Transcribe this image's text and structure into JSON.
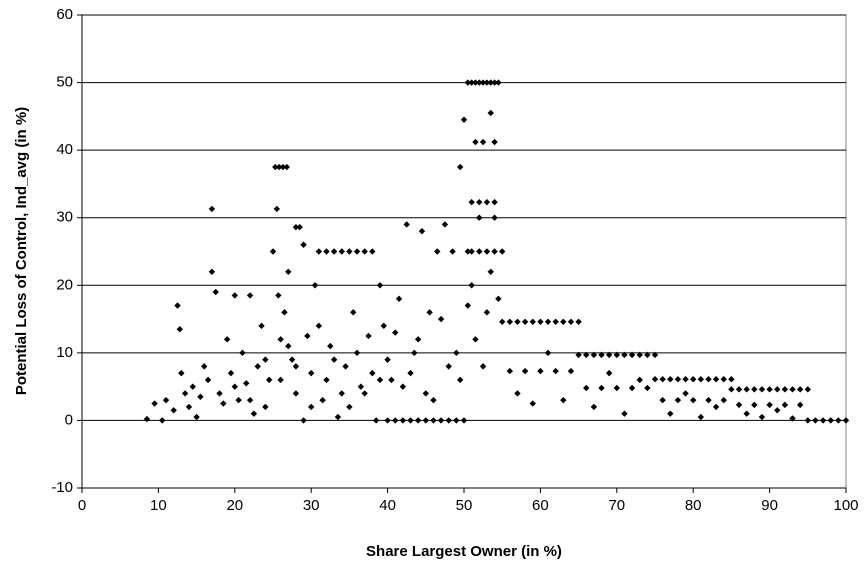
{
  "chart_data": {
    "type": "scatter",
    "x_label": "Share Largest Owner (in %)",
    "y_label": "Potential Loss of Control, Ind_avg (in %)",
    "color": "#000000",
    "grid": true,
    "xlim": [
      0,
      100
    ],
    "ylim": [
      -10,
      60
    ],
    "xticks": [
      0,
      10,
      20,
      30,
      40,
      50,
      60,
      70,
      80,
      90,
      100
    ],
    "yticks": [
      -10,
      0,
      10,
      20,
      30,
      40,
      50,
      60
    ],
    "x": [
      8.5,
      9.5,
      10.5,
      11,
      12,
      12.5,
      12.8,
      13,
      13.5,
      14,
      14.5,
      15,
      15.5,
      16,
      16.5,
      17,
      17,
      17.5,
      18,
      18.5,
      19,
      19.5,
      20,
      20.5,
      21,
      21.5,
      22,
      22.5,
      23,
      23.5,
      24,
      24.5,
      25,
      25.3,
      25.8,
      26.3,
      26.8,
      25.5,
      25.7,
      26,
      26.5,
      27,
      27.5,
      28,
      28.5,
      29,
      28,
      29,
      29.5,
      30,
      30.5,
      31,
      31.5,
      32,
      32.5,
      33,
      33.5,
      34,
      34.5,
      35,
      35.5,
      36,
      36.5,
      37,
      37.5,
      38,
      38.5,
      39,
      39.5,
      40,
      40.5,
      41,
      41.5,
      42,
      42.5,
      43,
      43.5,
      44,
      44.5,
      45,
      45.5,
      46,
      46.5,
      47,
      47.5,
      48,
      48.5,
      49,
      49.5,
      50,
      50,
      50.5,
      51,
      51.5,
      52,
      52.5,
      53,
      53.5,
      54,
      54.5,
      50.5,
      51,
      52,
      53,
      54,
      55,
      51,
      52,
      53,
      54,
      51.5,
      52.5,
      53.5,
      54,
      52,
      54,
      51,
      53,
      55,
      56,
      57,
      58,
      59,
      60,
      61,
      62,
      63,
      64,
      65,
      56,
      58,
      60,
      62,
      64,
      57,
      59,
      61,
      63,
      65,
      66,
      67,
      68,
      69,
      70,
      71,
      72,
      73,
      74,
      75,
      66,
      68,
      70,
      72,
      74,
      67,
      69,
      71,
      73,
      75,
      76,
      77,
      78,
      79,
      80,
      81,
      82,
      83,
      84,
      85,
      76,
      78,
      80,
      82,
      84,
      77,
      79,
      81,
      83,
      85,
      86,
      87,
      88,
      89,
      90,
      91,
      92,
      93,
      94,
      95,
      86,
      88,
      90,
      92,
      94,
      87,
      89,
      91,
      93,
      95,
      96,
      97,
      98,
      99,
      100,
      20,
      22,
      24,
      26,
      28,
      30,
      32,
      34,
      36,
      38,
      40,
      42,
      44,
      46,
      48,
      27,
      31,
      33,
      35,
      37,
      39,
      41,
      43,
      45,
      47,
      49,
      49.5,
      50.5,
      51.5,
      52.5,
      53.5,
      54.5
    ],
    "values": [
      0.2,
      2.5,
      0,
      3,
      1.5,
      17,
      13.5,
      7,
      4,
      2,
      5,
      0.5,
      3.5,
      8,
      6,
      31.3,
      22,
      19,
      4,
      2.5,
      12,
      7,
      18.5,
      3,
      10,
      5.5,
      18.5,
      1,
      8,
      14,
      2,
      6,
      25,
      37.5,
      37.5,
      37.5,
      37.5,
      31.3,
      18.5,
      12,
      16,
      22,
      9,
      28.6,
      28.6,
      26,
      4,
      0,
      12.5,
      7,
      20,
      25,
      3,
      25,
      11,
      25,
      0.5,
      25,
      8,
      25,
      16,
      25,
      5,
      25,
      12.5,
      25,
      0,
      20,
      14,
      0,
      6,
      0,
      18,
      0,
      29,
      0,
      10,
      0,
      28,
      0,
      16,
      0,
      25,
      0,
      29,
      0,
      25,
      0,
      37.5,
      44.5,
      0,
      50,
      50,
      50,
      50,
      50,
      50,
      50,
      50,
      50,
      25,
      25,
      25,
      25,
      25,
      25,
      32.3,
      32.3,
      32.3,
      32.3,
      41.2,
      41.2,
      45.5,
      41.2,
      30,
      30,
      20,
      16,
      14.6,
      14.6,
      14.6,
      14.6,
      14.6,
      14.6,
      14.6,
      14.6,
      14.6,
      14.6,
      14.6,
      7.3,
      7.3,
      7.3,
      7.3,
      7.3,
      4,
      2.5,
      10,
      3,
      9.7,
      9.7,
      9.7,
      9.7,
      9.7,
      9.7,
      9.7,
      9.7,
      9.7,
      9.7,
      9.7,
      4.8,
      4.8,
      4.8,
      4.8,
      4.8,
      2,
      7,
      1,
      6,
      6.1,
      6.1,
      6.1,
      6.1,
      6.1,
      6.1,
      6.1,
      6.1,
      6.1,
      6.1,
      6.1,
      3,
      3,
      3,
      3,
      3,
      1,
      4,
      0.5,
      2,
      4.6,
      4.6,
      4.6,
      4.6,
      4.6,
      4.6,
      4.6,
      4.6,
      4.6,
      4.6,
      4.6,
      2.3,
      2.3,
      2.3,
      2.3,
      2.3,
      1,
      0.5,
      1.5,
      0.3,
      0,
      0,
      0,
      0,
      0,
      0,
      5,
      3,
      9,
      6,
      8,
      2,
      6,
      4,
      10,
      7,
      9,
      5,
      12,
      3,
      8,
      11,
      14,
      9,
      2,
      4,
      6,
      13,
      7,
      4,
      15,
      10,
      6,
      17,
      12,
      8,
      22,
      18
    ]
  }
}
